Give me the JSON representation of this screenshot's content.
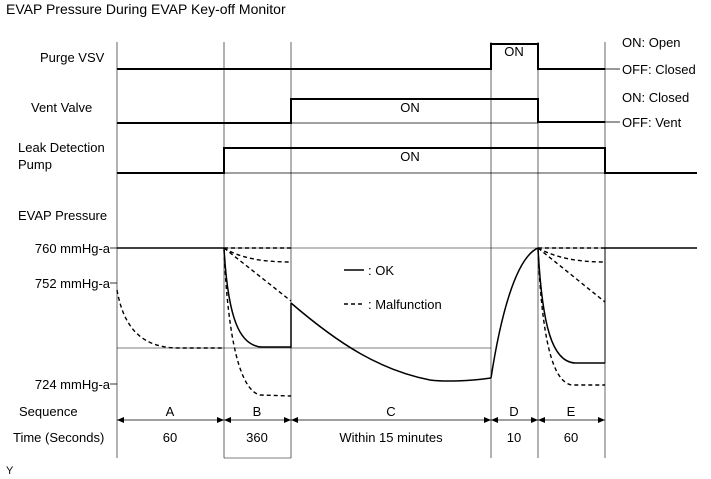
{
  "title": "EVAP Pressure During EVAP Key-off Monitor",
  "rows": {
    "purge_vsv": "Purge VSV",
    "vent_valve": "Vent Valve",
    "leak_pump_line1": "Leak Detection",
    "leak_pump_line2": "Pump",
    "evap_pressure": "EVAP Pressure",
    "sequence": "Sequence",
    "time": "Time (Seconds)"
  },
  "state_labels": {
    "purge_on": "ON",
    "vent_on": "ON",
    "pump_on": "ON"
  },
  "right_legend": {
    "purge_on": "ON: Open",
    "purge_off": "OFF: Closed",
    "vent_on": "ON: Closed",
    "vent_off": "OFF: Vent"
  },
  "pressure_ticks": {
    "p760": "760 mmHg-a",
    "p752": "752 mmHg-a",
    "p724": "724 mmHg-a"
  },
  "legend": {
    "ok": ": OK",
    "malfunction": ": Malfunction"
  },
  "sequence": [
    "A",
    "B",
    "C",
    "D",
    "E"
  ],
  "time": [
    "60",
    "360",
    "Within 15 minutes",
    "10",
    "60"
  ],
  "footer": "Y"
}
